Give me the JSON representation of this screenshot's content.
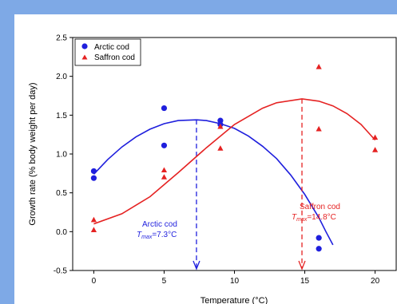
{
  "chart_data": {
    "type": "scatter",
    "xlabel": "Temperature (°C)",
    "ylabel": "Growth rate (% body weight per day)",
    "xlim": [
      -1.5,
      21.5
    ],
    "ylim": [
      -0.5,
      2.5
    ],
    "xticks": [
      "0",
      "5",
      "10",
      "15",
      "20"
    ],
    "yticks": [
      "-0.5",
      "0.0",
      "0.5",
      "1.0",
      "1.5",
      "2.0",
      "2.5"
    ],
    "legend_position": "top-left",
    "series": [
      {
        "name": "Arctic cod",
        "color": "#1f1fdd",
        "marker": "circle",
        "points": [
          [
            0,
            0.78
          ],
          [
            0,
            0.69
          ],
          [
            5,
            1.59
          ],
          [
            5,
            1.11
          ],
          [
            9,
            1.43
          ],
          [
            9,
            1.38
          ],
          [
            16,
            -0.08
          ],
          [
            16,
            -0.22
          ]
        ],
        "fit": [
          [
            0,
            0.74
          ],
          [
            1,
            0.93
          ],
          [
            2,
            1.09
          ],
          [
            3,
            1.22
          ],
          [
            4,
            1.32
          ],
          [
            5,
            1.39
          ],
          [
            6,
            1.43
          ],
          [
            7.3,
            1.44
          ],
          [
            8,
            1.43
          ],
          [
            9,
            1.39
          ],
          [
            10,
            1.33
          ],
          [
            11,
            1.23
          ],
          [
            12,
            1.1
          ],
          [
            13,
            0.94
          ],
          [
            14,
            0.73
          ],
          [
            15,
            0.48
          ],
          [
            16,
            0.18
          ],
          [
            16.5,
            0.0
          ],
          [
            17,
            -0.17
          ]
        ],
        "tmax": 7.3,
        "annotation": {
          "name": "Arctic cod",
          "tmax_label": "T",
          "tmax_sub": "max",
          "tmax_value": "=7.3°C"
        }
      },
      {
        "name": "Saffron cod",
        "color": "#e52222",
        "marker": "triangle",
        "points": [
          [
            0,
            0.15
          ],
          [
            0,
            0.02
          ],
          [
            5,
            0.79
          ],
          [
            5,
            0.7
          ],
          [
            9,
            1.35
          ],
          [
            9,
            1.07
          ],
          [
            16,
            2.12
          ],
          [
            16,
            1.32
          ],
          [
            20,
            1.21
          ],
          [
            20,
            1.05
          ]
        ],
        "fit": [
          [
            0,
            0.1
          ],
          [
            2,
            0.23
          ],
          [
            4,
            0.45
          ],
          [
            6,
            0.76
          ],
          [
            8,
            1.08
          ],
          [
            10,
            1.38
          ],
          [
            12,
            1.59
          ],
          [
            13,
            1.66
          ],
          [
            14.8,
            1.71
          ],
          [
            16,
            1.68
          ],
          [
            17,
            1.62
          ],
          [
            18,
            1.52
          ],
          [
            19,
            1.38
          ],
          [
            20,
            1.18
          ]
        ],
        "tmax": 14.8,
        "annotation": {
          "name": "Saffron cod",
          "tmax_label": "T",
          "tmax_sub": "max",
          "tmax_value": "=14.8°C"
        }
      }
    ]
  }
}
